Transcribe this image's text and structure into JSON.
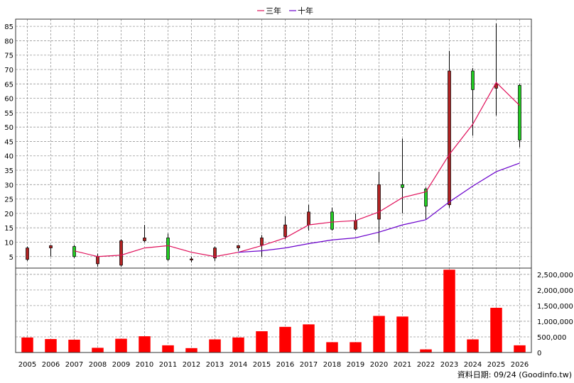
{
  "chart_data": {
    "type": "candlestick-with-volume",
    "years": [
      "2005",
      "2006",
      "2007",
      "2008",
      "2009",
      "2010",
      "2011",
      "2012",
      "2013",
      "2014",
      "2015",
      "2016",
      "2017",
      "2018",
      "2019",
      "2020",
      "2021",
      "2022",
      "2023",
      "2024",
      "2025",
      "2026"
    ],
    "ohlc": [
      {
        "open": 8,
        "high": 8.5,
        "low": 3.5,
        "close": 4,
        "dir": "down"
      },
      {
        "open": 8.8,
        "high": 9,
        "low": 5,
        "close": 8,
        "dir": "down"
      },
      {
        "open": 5,
        "high": 9,
        "low": 4.5,
        "close": 8.5,
        "dir": "up"
      },
      {
        "open": 5,
        "high": 6,
        "low": 1.5,
        "close": 2.5,
        "dir": "down"
      },
      {
        "open": 10.5,
        "high": 11,
        "low": 1.5,
        "close": 2,
        "dir": "down"
      },
      {
        "open": 11.5,
        "high": 16,
        "low": 10,
        "close": 10.5,
        "dir": "down"
      },
      {
        "open": 4,
        "high": 13,
        "low": 3.5,
        "close": 11.5,
        "dir": "up"
      },
      {
        "open": 4.2,
        "high": 5,
        "low": 3,
        "close": 3.8,
        "dir": "down"
      },
      {
        "open": 8,
        "high": 8.5,
        "low": 3.5,
        "close": 4.5,
        "dir": "down"
      },
      {
        "open": 8.8,
        "high": 9,
        "low": 7,
        "close": 8,
        "dir": "down"
      },
      {
        "open": 11.5,
        "high": 12.5,
        "low": 5,
        "close": 9,
        "dir": "down"
      },
      {
        "open": 16,
        "high": 19,
        "low": 11,
        "close": 12,
        "dir": "down"
      },
      {
        "open": 20.5,
        "high": 23,
        "low": 14,
        "close": 16,
        "dir": "down"
      },
      {
        "open": 14.5,
        "high": 22,
        "low": 14,
        "close": 20.5,
        "dir": "up"
      },
      {
        "open": 17.5,
        "high": 20,
        "low": 14,
        "close": 14.5,
        "dir": "down"
      },
      {
        "open": 30,
        "high": 34.5,
        "low": 10,
        "close": 18,
        "dir": "down"
      },
      {
        "open": 29,
        "high": 46,
        "low": 20,
        "close": 30,
        "dir": "up"
      },
      {
        "open": 22.5,
        "high": 29,
        "low": 18,
        "close": 28.5,
        "dir": "up"
      },
      {
        "open": 69.5,
        "high": 76.5,
        "low": 22,
        "close": 23,
        "dir": "down"
      },
      {
        "open": 63,
        "high": 70.5,
        "low": 47,
        "close": 69.5,
        "dir": "up"
      },
      {
        "open": 65,
        "high": 86,
        "low": 54,
        "close": 63.5,
        "dir": "down"
      },
      {
        "open": 45.5,
        "high": 65,
        "low": 43,
        "close": 64.5,
        "dir": "up"
      }
    ],
    "ma3": [
      null,
      null,
      7,
      5,
      5.5,
      8,
      8.8,
      6.5,
      5,
      6.5,
      8.8,
      11.5,
      16,
      17,
      17.5,
      20.5,
      25.5,
      27.5,
      40.5,
      51,
      65.5,
      57.5
    ],
    "ma10": [
      null,
      null,
      null,
      null,
      null,
      null,
      null,
      null,
      null,
      6.5,
      7,
      8,
      9.5,
      10.8,
      11.5,
      13.5,
      16,
      17.8,
      24,
      29.5,
      34.5,
      37.5
    ],
    "volume": [
      480000,
      430000,
      410000,
      150000,
      440000,
      520000,
      230000,
      140000,
      420000,
      480000,
      680000,
      820000,
      900000,
      330000,
      330000,
      1170000,
      1150000,
      100000,
      2650000,
      420000,
      1430000,
      230000
    ],
    "price_axis": {
      "ticks": [
        5,
        10,
        15,
        20,
        25,
        30,
        35,
        40,
        45,
        50,
        55,
        60,
        65,
        70,
        75,
        80,
        85
      ],
      "min": 1,
      "max": 87.5
    },
    "volume_axis": {
      "ticks": [
        0,
        500000,
        1000000,
        1500000,
        2000000,
        2500000
      ],
      "tick_labels": [
        "0",
        "500,000",
        "1,000,000",
        "1,500,000",
        "2,000,000",
        "2,500,000"
      ],
      "max": 2700000
    },
    "legend": [
      {
        "label": "三年",
        "color": "#e0105a"
      },
      {
        "label": "十年",
        "color": "#6a00cc"
      }
    ],
    "grid": true,
    "legend_position": "top-center"
  },
  "colors": {
    "down_candle": "#b22222",
    "up_candle": "#22cc22",
    "volume_bar": "#ff0000"
  },
  "footer": "資料日期: 09/24  (Goodinfo.tw)"
}
